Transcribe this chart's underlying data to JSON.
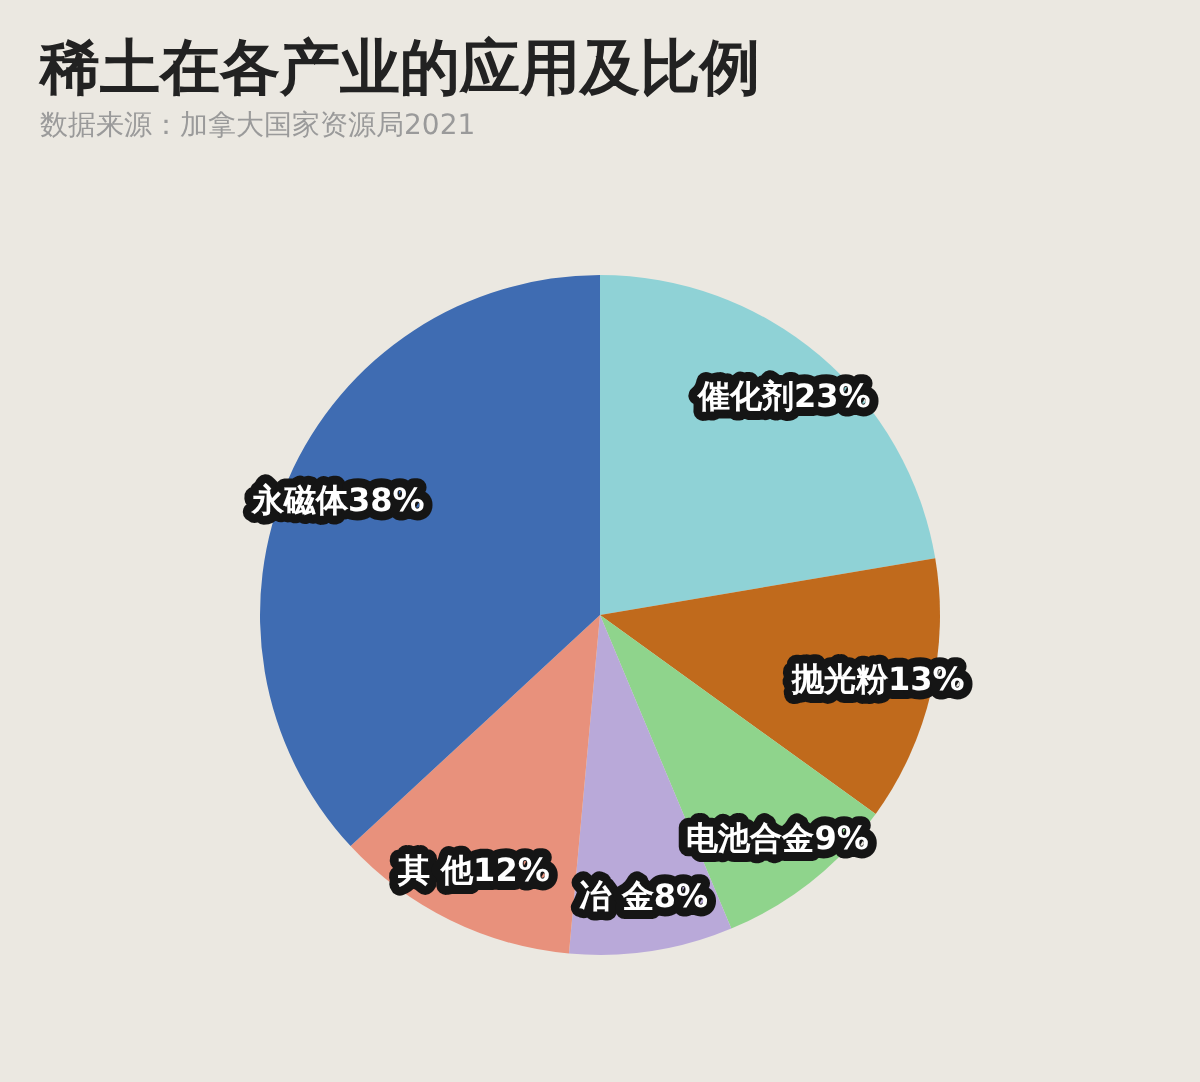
{
  "chart_data": {
    "type": "pie",
    "title": "稀土在各产业的应用及比例",
    "subtitle": "数据来源：加拿大国家资源局2021",
    "categories": [
      "催化剂",
      "抛光粉",
      "电池合金",
      "冶 金",
      "其 他",
      "永磁体"
    ],
    "values": [
      23,
      13,
      9,
      8,
      12,
      38
    ],
    "value_labels": [
      "23%",
      "13%",
      "9%",
      "8%",
      "12%",
      "38%"
    ],
    "colors": [
      "#8fd2d6",
      "#c06a1c",
      "#8fd48c",
      "#b9a9d9",
      "#e8917c",
      "#3f6cb2"
    ],
    "legend": false
  }
}
